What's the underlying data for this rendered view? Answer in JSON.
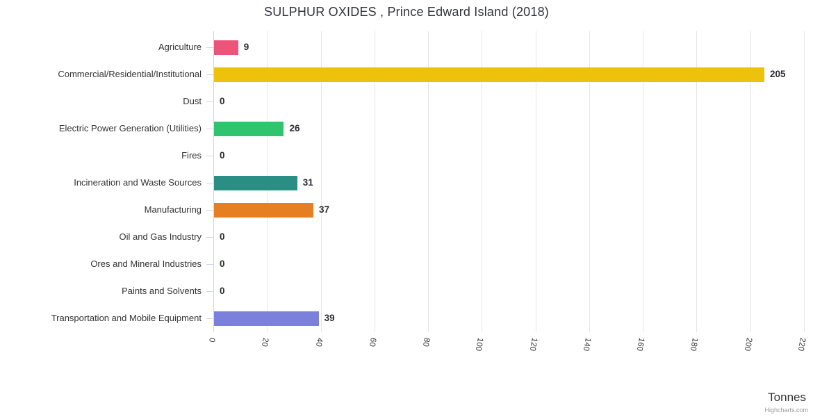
{
  "chart_data": {
    "type": "bar",
    "orientation": "horizontal",
    "title": "SULPHUR OXIDES , Prince Edward Island (2018)",
    "categories": [
      "Agriculture",
      "Commercial/Residential/Institutional",
      "Dust",
      "Electric Power Generation (Utilities)",
      "Fires",
      "Incineration and Waste Sources",
      "Manufacturing",
      "Oil and Gas Industry",
      "Ores and Mineral Industries",
      "Paints and Solvents",
      "Transportation and Mobile Equipment"
    ],
    "values": [
      9,
      205,
      0,
      26,
      0,
      31,
      37,
      0,
      0,
      0,
      39
    ],
    "bar_colors": [
      "#ec5479",
      "#edc10c",
      null,
      "#2fc56e",
      null,
      "#2b8e85",
      "#e67e22",
      null,
      null,
      null,
      "#7b80dd"
    ],
    "data_labels": [
      "9",
      "205",
      "0",
      "26",
      "0",
      "31",
      "37",
      "0",
      "0",
      "0",
      "39"
    ],
    "xlabel": "Tonnes",
    "ylabel": "",
    "xlim": [
      0,
      220
    ],
    "x_ticks": [
      0,
      20,
      40,
      60,
      80,
      100,
      120,
      140,
      160,
      180,
      200,
      220
    ],
    "grid": true,
    "legend": false,
    "colors_meta": {
      "grid_line": "#e6e6e6",
      "axis_line": "#ccd6eb",
      "label_text": "#333333",
      "data_label_text": "#2b2b33",
      "title_text": "#333340",
      "credit_text": "#999999"
    }
  },
  "credit": {
    "label": "Highcharts.com"
  }
}
